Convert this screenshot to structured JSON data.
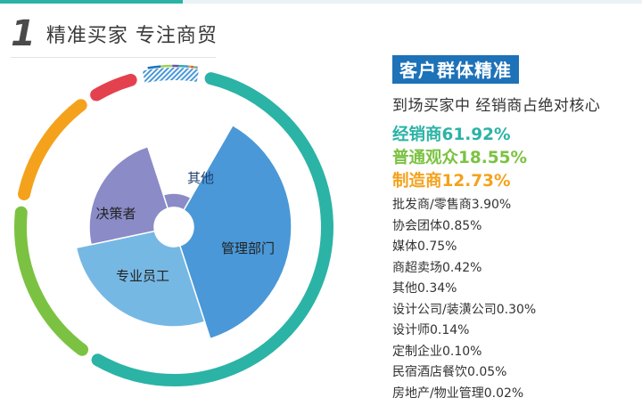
{
  "header": {
    "number": "1",
    "title": "精准买家  专注商贸"
  },
  "panel": {
    "tag": "客户群体精准",
    "subtitle": "到场买家中  经销商占绝对核心"
  },
  "colors": {
    "teal": "#2bb3a6",
    "green": "#7cc242",
    "orange": "#f4a21c",
    "red": "#e4414f",
    "blue": "#4a98d8",
    "light_blue": "#76b8e4",
    "purple": "#8a8bc7",
    "header_accent": "#1d72b8"
  },
  "chart_data": [
    {
      "type": "pie",
      "subtype": "donut-ring",
      "series": [
        {
          "name": "经销商",
          "value": 61.92,
          "label": "经销商61.92%",
          "color": "#2bb3a6"
        },
        {
          "name": "普通观众",
          "value": 18.55,
          "label": "普通观众18.55%",
          "color": "#7cc242"
        },
        {
          "name": "制造商",
          "value": 12.73,
          "label": "制造商12.73%",
          "color": "#f4a21c"
        },
        {
          "name": "批发商/零售商",
          "value": 3.9,
          "label": "批发商/零售商3.90%",
          "color": "#e4414f"
        },
        {
          "name": "协会团体",
          "value": 0.85,
          "label": "协会团体0.85%",
          "color": "#1d72b8"
        },
        {
          "name": "媒体",
          "value": 0.75,
          "label": "媒体0.75%",
          "color": "#9fd05d"
        },
        {
          "name": "商超卖场",
          "value": 0.42,
          "label": "商超卖场0.42%",
          "color": "#6a4fa3"
        },
        {
          "name": "其他",
          "value": 0.34,
          "label": "其他0.34%",
          "color": "#2bb3a6"
        },
        {
          "name": "设计公司/装潢公司",
          "value": 0.3,
          "label": "设计公司/装潢公司0.30%",
          "color": "#4a98d8"
        },
        {
          "name": "设计师",
          "value": 0.14,
          "label": "设计师0.14%",
          "color": "#f4a21c"
        },
        {
          "name": "定制企业",
          "value": 0.1,
          "label": "定制企业0.10%",
          "color": "#e4414f"
        },
        {
          "name": "民宿酒店餐饮",
          "value": 0.05,
          "label": "民宿酒店餐饮0.05%",
          "color": "#7cc242"
        },
        {
          "name": "房地产/物业管理",
          "value": 0.02,
          "label": "房地产/物业管理0.02%",
          "color": "#8a8bc7"
        }
      ]
    },
    {
      "type": "pie",
      "subtype": "rose",
      "categories": [
        "管理部门",
        "专业员工",
        "决策者",
        "其他"
      ],
      "colors": [
        "#4a98d8",
        "#76b8e4",
        "#8a8bc7",
        "#8a8bc7"
      ]
    }
  ]
}
